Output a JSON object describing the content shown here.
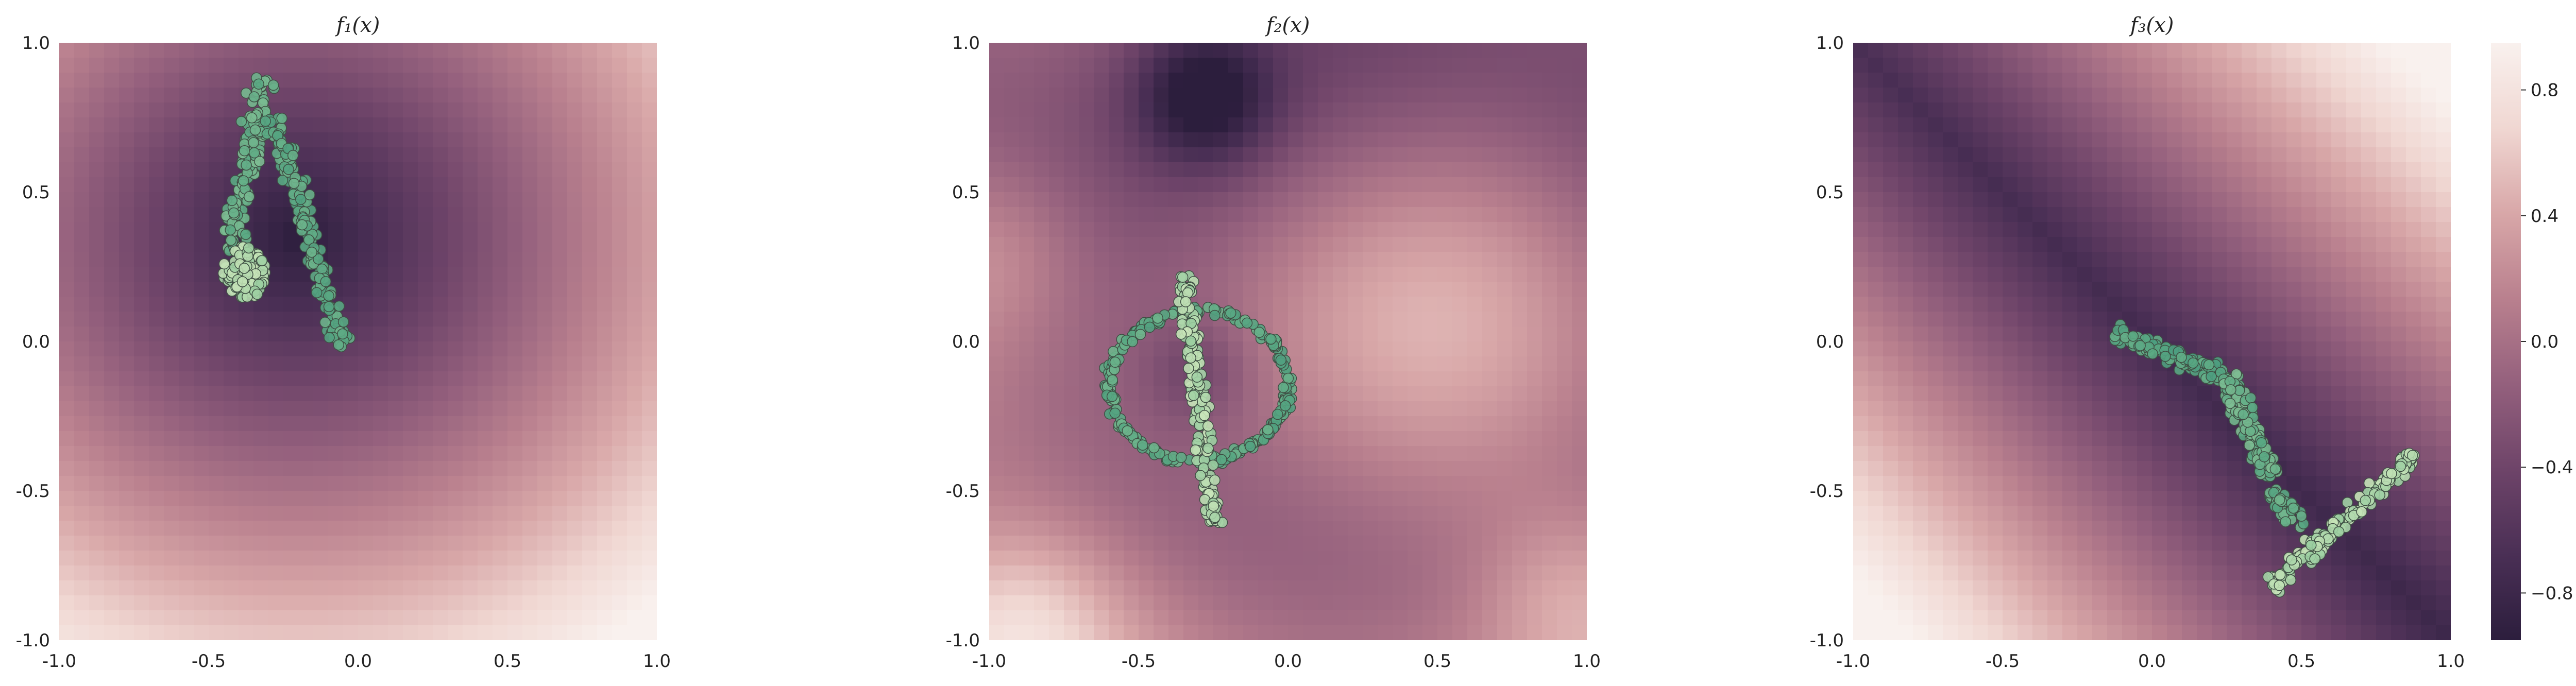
{
  "chart_data": [
    {
      "type": "heatmap",
      "title": "f₁(x)",
      "xlim": [
        -1.0,
        1.0
      ],
      "ylim": [
        -1.0,
        1.0
      ],
      "x_ticks": [
        "-1.0",
        "-0.5",
        "0.0",
        "0.5",
        "1.0"
      ],
      "y_ticks": [
        "-1.0",
        "-0.5",
        "0.0",
        "0.5",
        "1.0"
      ],
      "field": "radial bowl centred near (-0.2, 0.35); dark minimum, light toward bottom-right corner",
      "scatter_clusters": [
        {
          "shape": "arm",
          "from": [
            -0.32,
            0.88
          ],
          "to": [
            -0.42,
            0.3
          ],
          "width": 0.07,
          "n": 150,
          "tone": 0.45
        },
        {
          "shape": "arm",
          "from": [
            -0.28,
            0.75
          ],
          "to": [
            -0.05,
            -0.02
          ],
          "width": 0.055,
          "n": 170,
          "tone": 0.35
        },
        {
          "shape": "blob",
          "center": [
            -0.38,
            0.23
          ],
          "radius": 0.09,
          "n": 120,
          "tone": 0.85
        }
      ]
    },
    {
      "type": "heatmap",
      "title": "f₂(x)",
      "xlim": [
        -1.0,
        1.0
      ],
      "ylim": [
        -1.0,
        1.0
      ],
      "x_ticks": [
        "-1.0",
        "-0.5",
        "0.0",
        "0.5",
        "1.0"
      ],
      "y_ticks": [
        "-1.0",
        "-0.5",
        "0.0",
        "0.5",
        "1.0"
      ],
      "field": "smooth bumpy surface; dark region near (-0.3, 0.8), light toward bottom corners",
      "scatter_clusters": [
        {
          "shape": "ring",
          "center": [
            -0.3,
            -0.15
          ],
          "rx": 0.3,
          "ry": 0.25,
          "width": 0.05,
          "n": 260,
          "tone": 0.35
        },
        {
          "shape": "arm",
          "from": [
            -0.35,
            0.22
          ],
          "to": [
            -0.25,
            -0.62
          ],
          "width": 0.045,
          "n": 170,
          "tone": 0.85
        }
      ]
    },
    {
      "type": "heatmap",
      "title": "f₃(x)",
      "xlim": [
        -1.0,
        1.0
      ],
      "ylim": [
        -1.0,
        1.0
      ],
      "x_ticks": [
        "-1.0",
        "-0.5",
        "0.0",
        "0.5",
        "1.0"
      ],
      "y_ticks": [
        "-1.0",
        "-0.5",
        "0.0",
        "0.5",
        "1.0"
      ],
      "field": "minimum along the anti-diagonal x + y = 0, light toward top-left corner",
      "scatter_clusters": [
        {
          "shape": "arm",
          "from": [
            -0.12,
            0.03
          ],
          "to": [
            0.25,
            -0.12
          ],
          "width": 0.05,
          "n": 130,
          "tone": 0.3
        },
        {
          "shape": "arm",
          "from": [
            0.25,
            -0.12
          ],
          "to": [
            0.4,
            -0.45
          ],
          "width": 0.07,
          "n": 140,
          "tone": 0.45
        },
        {
          "shape": "arm",
          "from": [
            0.4,
            -0.5
          ],
          "to": [
            0.5,
            -0.62
          ],
          "width": 0.05,
          "n": 50,
          "tone": 0.4
        },
        {
          "shape": "arm",
          "from": [
            0.4,
            -0.82
          ],
          "to": [
            0.88,
            -0.38
          ],
          "width": 0.05,
          "n": 170,
          "tone": 0.85
        }
      ]
    }
  ],
  "colorbar": {
    "ticks": [
      {
        "value": 0.8,
        "label": "0.8"
      },
      {
        "value": 0.4,
        "label": "0.4"
      },
      {
        "value": 0.0,
        "label": "0.0"
      },
      {
        "value": -0.4,
        "label": "−0.4"
      },
      {
        "value": -0.8,
        "label": "−0.8"
      }
    ],
    "range": [
      -0.95,
      0.95
    ]
  },
  "colors": {
    "colormap": [
      "#2c1e3d",
      "#4a2f55",
      "#6e4469",
      "#94607d",
      "#b9808e",
      "#d8a7a8",
      "#f0d7d2",
      "#f9f1ee"
    ],
    "scatter_gradient": [
      "#3d8f79",
      "#5aa883",
      "#8ec79a",
      "#cfe8bd"
    ],
    "scatter_edge": "#3f4f44"
  }
}
